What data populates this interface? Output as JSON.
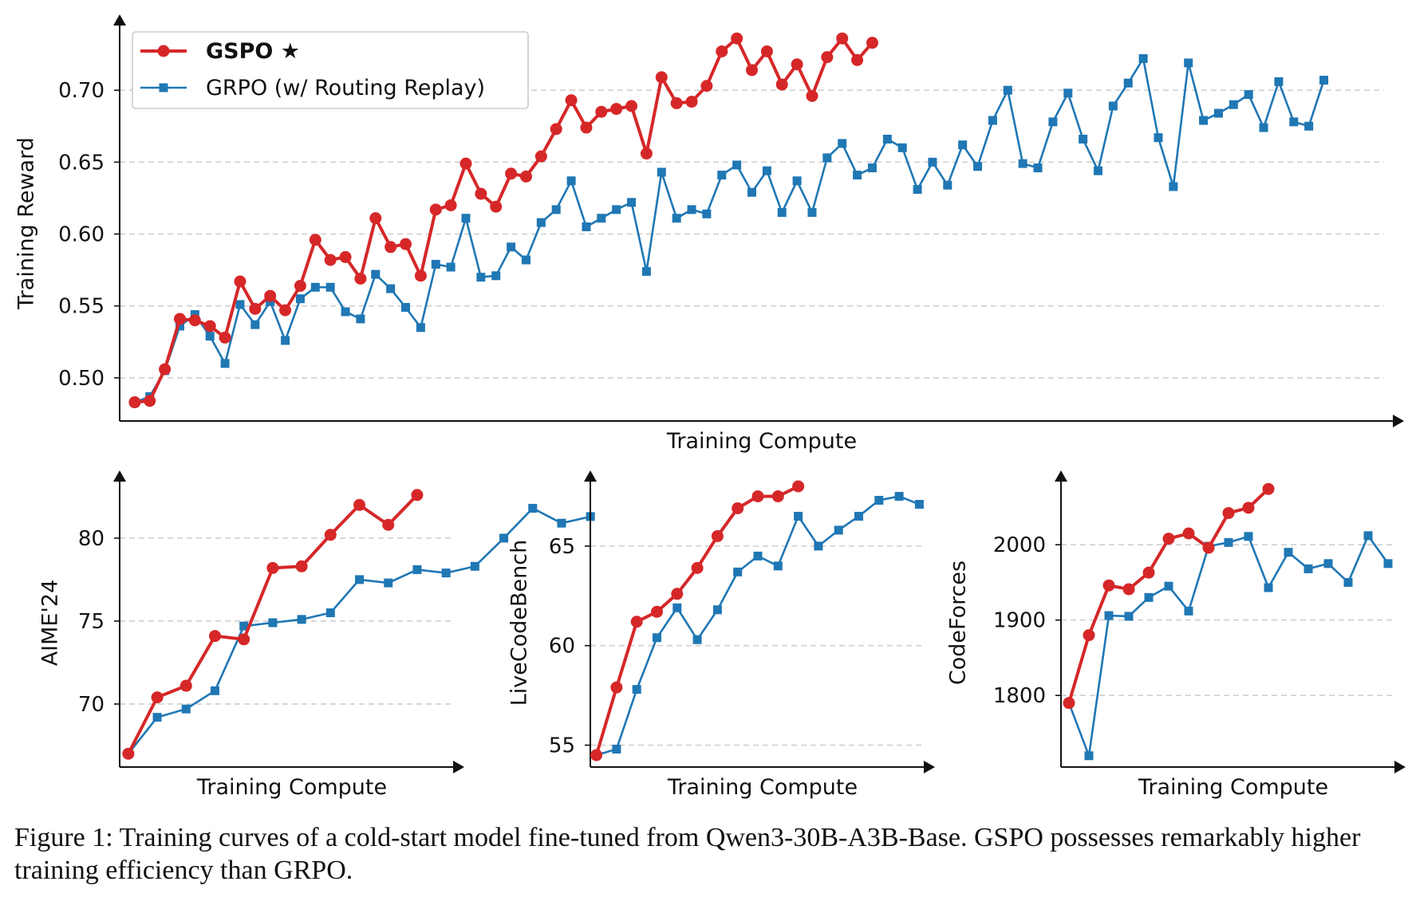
{
  "chart_data": [
    {
      "id": "reward",
      "type": "line",
      "title": "",
      "xlabel": "Training Compute",
      "ylabel": "Training Reward",
      "ylim": [
        0.47,
        0.745
      ],
      "yticks": [
        0.5,
        0.55,
        0.6,
        0.65,
        0.7
      ],
      "ytick_labels": [
        "0.50",
        "0.55",
        "0.60",
        "0.65",
        "0.70"
      ],
      "xlim": [
        -1,
        83
      ],
      "grid": "horizontal dashed",
      "legend_position": "top-left",
      "series": [
        {
          "name": "GSPO ★",
          "color": "#d62728",
          "marker": "circle",
          "values": [
            0.483,
            0.484,
            0.506,
            0.541,
            0.54,
            0.536,
            0.528,
            0.567,
            0.548,
            0.557,
            0.547,
            0.564,
            0.596,
            0.582,
            0.584,
            0.569,
            0.611,
            0.591,
            0.593,
            0.571,
            0.617,
            0.62,
            0.649,
            0.628,
            0.619,
            0.642,
            0.64,
            0.654,
            0.673,
            0.693,
            0.674,
            0.685,
            0.687,
            0.689,
            0.656,
            0.709,
            0.691,
            0.692,
            0.703,
            0.727,
            0.736,
            0.714,
            0.727,
            0.704,
            0.718,
            0.696,
            0.723,
            0.736,
            0.721,
            0.733
          ]
        },
        {
          "name": "GRPO (w/ Routing Replay)",
          "color": "#1f77b4",
          "marker": "square",
          "values": [
            0.483,
            0.487,
            0.505,
            0.536,
            0.544,
            0.529,
            0.51,
            0.551,
            0.537,
            0.553,
            0.526,
            0.555,
            0.563,
            0.563,
            0.546,
            0.541,
            0.572,
            0.562,
            0.549,
            0.535,
            0.579,
            0.577,
            0.611,
            0.57,
            0.571,
            0.591,
            0.582,
            0.608,
            0.617,
            0.637,
            0.605,
            0.611,
            0.617,
            0.622,
            0.574,
            0.643,
            0.611,
            0.617,
            0.614,
            0.641,
            0.648,
            0.629,
            0.644,
            0.615,
            0.637,
            0.615,
            0.653,
            0.663,
            0.641,
            0.646,
            0.666,
            0.66,
            0.631,
            0.65,
            0.634,
            0.662,
            0.647,
            0.679,
            0.7,
            0.649,
            0.646,
            0.678,
            0.698,
            0.666,
            0.644,
            0.689,
            0.705,
            0.722,
            0.667,
            0.633,
            0.719,
            0.679,
            0.684,
            0.69,
            0.697,
            0.674,
            0.706,
            0.678,
            0.675,
            0.707
          ]
        }
      ]
    },
    {
      "id": "aime",
      "type": "line",
      "title": "",
      "xlabel": "Training Compute",
      "ylabel": "AIME'24",
      "ylim": [
        66.2,
        83.6
      ],
      "yticks": [
        70,
        75,
        80
      ],
      "ytick_labels": [
        "70",
        "75",
        "80"
      ],
      "xlim": [
        -0.3,
        11.3
      ],
      "grid": "horizontal dashed",
      "series": [
        {
          "name": "GSPO ★",
          "color": "#d62728",
          "marker": "circle",
          "values": [
            67.0,
            70.4,
            71.1,
            74.1,
            73.9,
            78.2,
            78.3,
            80.2,
            82.0,
            80.8,
            82.6
          ]
        },
        {
          "name": "GRPO (w/ Routing Replay)",
          "color": "#1f77b4",
          "marker": "square",
          "values": [
            67.0,
            69.2,
            69.7,
            70.8,
            74.7,
            74.9,
            75.1,
            75.5,
            77.5,
            77.3,
            78.1,
            77.9,
            78.3,
            80.0,
            81.8,
            80.9,
            81.3
          ]
        }
      ]
    },
    {
      "id": "lcb",
      "type": "line",
      "title": "",
      "xlabel": "Training Compute",
      "ylabel": "LiveCodeBench",
      "ylim": [
        53.9,
        68.4
      ],
      "yticks": [
        55,
        60,
        65
      ],
      "ytick_labels": [
        "55",
        "60",
        "65"
      ],
      "xlim": [
        -0.3,
        16.3
      ],
      "grid": "horizontal dashed",
      "series": [
        {
          "name": "GSPO ★",
          "color": "#d62728",
          "marker": "circle",
          "values": [
            54.5,
            57.9,
            61.2,
            61.7,
            62.6,
            63.9,
            65.5,
            66.9,
            67.5,
            67.5,
            68.0
          ]
        },
        {
          "name": "GRPO (w/ Routing Replay)",
          "color": "#1f77b4",
          "marker": "square",
          "values": [
            54.5,
            54.8,
            57.8,
            60.4,
            61.9,
            60.3,
            61.8,
            63.7,
            64.5,
            64.0,
            66.5,
            65.0,
            65.8,
            66.5,
            67.3,
            67.5,
            67.1
          ]
        }
      ]
    },
    {
      "id": "cf",
      "type": "line",
      "title": "",
      "xlabel": "Training Compute",
      "ylabel": "CodeForces",
      "ylim": [
        1705,
        2088
      ],
      "yticks": [
        1800,
        1900,
        2000
      ],
      "ytick_labels": [
        "1800",
        "1900",
        "2000"
      ],
      "xlim": [
        -0.4,
        16.4
      ],
      "grid": "horizontal dashed",
      "series": [
        {
          "name": "GSPO ★",
          "color": "#d62728",
          "marker": "circle",
          "values": [
            1790,
            1880,
            1946,
            1941,
            1963,
            2008,
            2015,
            1996,
            2042,
            2049,
            2074
          ]
        },
        {
          "name": "GRPO (w/ Routing Replay)",
          "color": "#1f77b4",
          "marker": "square",
          "values": [
            1790,
            1720,
            1906,
            1905,
            1930,
            1945,
            1912,
            1998,
            2003,
            2011,
            1943,
            1990,
            1968,
            1975,
            1950,
            2012,
            1975
          ]
        }
      ]
    }
  ],
  "legend": {
    "entries": [
      {
        "label": "GSPO ★",
        "color": "#d62728",
        "marker": "circle",
        "bold": true
      },
      {
        "label": "GRPO (w/ Routing Replay)",
        "color": "#1f77b4",
        "marker": "square",
        "bold": false
      }
    ]
  },
  "caption": "Figure 1: Training curves of a cold-start model fine-tuned from Qwen3-30B-A3B-Base. GSPO possesses remarkably higher training efficiency than GRPO."
}
